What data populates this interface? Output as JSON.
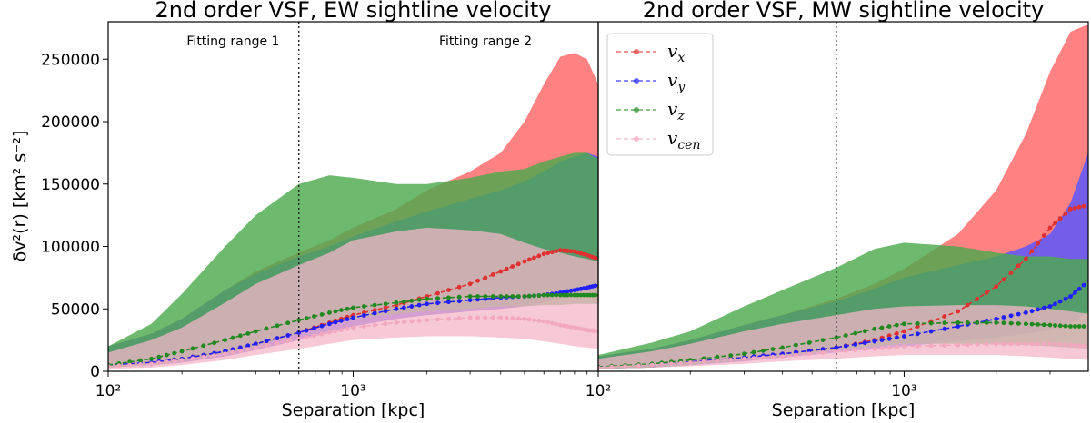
{
  "chart_data": [
    {
      "type": "area",
      "title": "2nd order VSF, EW sightline velocity",
      "xlabel": "Separation [kpc]",
      "ylabel": "δv²(r) [km² s⁻²]",
      "xscale": "log",
      "xlim": [
        100,
        10000
      ],
      "ylim": [
        0,
        280000
      ],
      "xticks": [
        {
          "value": 100,
          "label": "10²"
        },
        {
          "value": 1000,
          "label": "10³"
        }
      ],
      "yticks": [
        0,
        50000,
        100000,
        150000,
        200000,
        250000
      ],
      "vline": 600,
      "annotations": [
        "Fitting range 1",
        "Fitting range 2"
      ],
      "series": [
        {
          "name": "v_x",
          "color": "#ff6666",
          "x": [
            100,
            150,
            200,
            300,
            400,
            600,
            800,
            1000,
            1500,
            2000,
            3000,
            4000,
            5000,
            6000,
            7000,
            8000,
            9000,
            10000
          ],
          "upper": [
            20000,
            30000,
            42000,
            65000,
            80000,
            95000,
            105000,
            115000,
            130000,
            145000,
            160000,
            175000,
            200000,
            230000,
            252000,
            255000,
            250000,
            230000
          ],
          "lower": [
            3000,
            5000,
            7000,
            12000,
            17000,
            25000,
            32000,
            36000,
            42000,
            45000,
            48000,
            50000,
            52000,
            58000,
            62000,
            65000,
            60000,
            55000
          ],
          "mean": [
            5000,
            7000,
            10000,
            16000,
            22000,
            31000,
            39000,
            45000,
            53000,
            60000,
            70000,
            80000,
            88000,
            94000,
            97000,
            96000,
            93000,
            90000
          ]
        },
        {
          "name": "v_y",
          "color": "#5555ff",
          "x": [
            100,
            150,
            200,
            300,
            400,
            600,
            800,
            1000,
            1500,
            2000,
            3000,
            4000,
            5000,
            6000,
            7000,
            8000,
            9000,
            10000
          ],
          "upper": [
            20000,
            30000,
            42000,
            65000,
            78000,
            92000,
            100000,
            108000,
            120000,
            128000,
            138000,
            145000,
            152000,
            160000,
            168000,
            172000,
            175000,
            172000
          ],
          "lower": [
            3000,
            5000,
            7000,
            12000,
            17000,
            25000,
            32000,
            36000,
            42000,
            45000,
            48000,
            50000,
            52000,
            55000,
            58000,
            60000,
            62000,
            62000
          ],
          "mean": [
            5000,
            7000,
            10000,
            16000,
            22000,
            31000,
            38000,
            43000,
            50000,
            54000,
            57000,
            59000,
            60000,
            61000,
            63000,
            65000,
            67000,
            69000
          ]
        },
        {
          "name": "v_z",
          "color": "#4daa4d",
          "x": [
            100,
            150,
            200,
            300,
            400,
            600,
            800,
            1000,
            1500,
            2000,
            3000,
            4000,
            5000,
            6000,
            7000,
            8000,
            9000,
            10000
          ],
          "upper": [
            20000,
            38000,
            62000,
            100000,
            125000,
            150000,
            157000,
            155000,
            150000,
            150000,
            155000,
            160000,
            162000,
            168000,
            172000,
            175000,
            175000,
            170000
          ],
          "lower": [
            3000,
            5000,
            8000,
            14000,
            20000,
            30000,
            38000,
            42000,
            46000,
            48000,
            50000,
            52000,
            52000,
            53000,
            53000,
            54000,
            54000,
            54000
          ],
          "mean": [
            5000,
            10000,
            16000,
            25000,
            32000,
            41000,
            47000,
            51000,
            55000,
            58000,
            60000,
            60000,
            60000,
            61000,
            61000,
            61000,
            61000,
            61000
          ]
        },
        {
          "name": "v_cen",
          "color": "#f4b6c8",
          "x": [
            100,
            150,
            200,
            300,
            400,
            600,
            800,
            1000,
            1500,
            2000,
            3000,
            4000,
            5000,
            6000,
            7000,
            8000,
            9000,
            10000
          ],
          "upper": [
            15000,
            25000,
            35000,
            55000,
            70000,
            85000,
            95000,
            105000,
            112000,
            115000,
            113000,
            110000,
            103000,
            98000,
            95000,
            92000,
            90000,
            88000
          ],
          "lower": [
            2000,
            3000,
            5000,
            9000,
            13000,
            18000,
            22000,
            25000,
            27000,
            28000,
            28000,
            27000,
            26000,
            24000,
            22000,
            20000,
            19000,
            18000
          ],
          "mean": [
            4000,
            6000,
            9000,
            14000,
            19000,
            26000,
            31000,
            35000,
            39000,
            41000,
            43000,
            43000,
            42000,
            40000,
            37000,
            35000,
            33000,
            32000
          ]
        }
      ]
    },
    {
      "type": "area",
      "title": "2nd order VSF, MW sightline velocity",
      "xlabel": "Separation [kpc]",
      "ylabel": "",
      "xscale": "log",
      "xlim": [
        100,
        4000
      ],
      "ylim": [
        0,
        280000
      ],
      "xticks": [
        {
          "value": 100,
          "label": "10²"
        },
        {
          "value": 1000,
          "label": "10³"
        }
      ],
      "yticks": [],
      "vline": 600,
      "annotations": [],
      "series": [
        {
          "name": "v_x",
          "color": "#ff6666",
          "x": [
            100,
            150,
            200,
            300,
            400,
            600,
            800,
            1000,
            1500,
            2000,
            2500,
            3000,
            3500,
            4000
          ],
          "upper": [
            12000,
            18000,
            25000,
            37000,
            45000,
            58000,
            70000,
            82000,
            110000,
            145000,
            190000,
            240000,
            272000,
            278000
          ],
          "lower": [
            2000,
            3000,
            5000,
            8000,
            11000,
            16000,
            20000,
            24000,
            30000,
            36000,
            42000,
            47000,
            50000,
            50000
          ],
          "mean": [
            3500,
            5000,
            7500,
            11000,
            14000,
            19000,
            25000,
            32000,
            48000,
            68000,
            90000,
            115000,
            130000,
            133000
          ]
        },
        {
          "name": "v_y",
          "color": "#5555ff",
          "x": [
            100,
            150,
            200,
            300,
            400,
            600,
            800,
            1000,
            1500,
            2000,
            2500,
            3000,
            3500,
            4000
          ],
          "upper": [
            12000,
            18000,
            25000,
            37000,
            45000,
            56000,
            66000,
            75000,
            85000,
            92000,
            100000,
            110000,
            135000,
            175000
          ],
          "lower": [
            2000,
            3000,
            5000,
            8000,
            11000,
            15000,
            18000,
            20000,
            24000,
            27000,
            30000,
            33000,
            38000,
            48000
          ],
          "mean": [
            3500,
            5000,
            7500,
            11000,
            14000,
            19000,
            24000,
            28000,
            36000,
            42000,
            47000,
            52000,
            60000,
            72000
          ]
        },
        {
          "name": "v_z",
          "color": "#4daa4d",
          "x": [
            100,
            150,
            200,
            300,
            400,
            600,
            800,
            1000,
            1500,
            2000,
            2500,
            3000,
            3500,
            4000
          ],
          "upper": [
            13000,
            23000,
            32000,
            52000,
            65000,
            83000,
            98000,
            103000,
            100000,
            95000,
            92000,
            92000,
            90000,
            90000
          ],
          "lower": [
            2000,
            3000,
            5000,
            9000,
            12000,
            17000,
            20000,
            22000,
            22000,
            22000,
            21000,
            20000,
            19000,
            18000
          ],
          "mean": [
            3500,
            6000,
            9000,
            14000,
            19000,
            27000,
            34000,
            38000,
            39000,
            39000,
            38000,
            37000,
            36000,
            36000
          ]
        },
        {
          "name": "v_cen",
          "color": "#f4b6c8",
          "x": [
            100,
            150,
            200,
            300,
            400,
            600,
            800,
            1000,
            1500,
            2000,
            2500,
            3000,
            3500,
            4000
          ],
          "upper": [
            10000,
            16000,
            22000,
            32000,
            38000,
            45000,
            50000,
            52000,
            53000,
            53000,
            52000,
            50000,
            48000,
            46000
          ],
          "lower": [
            2000,
            3000,
            4000,
            6000,
            8000,
            10000,
            12000,
            13000,
            13000,
            13000,
            12000,
            11000,
            10000,
            9000
          ],
          "mean": [
            3000,
            5000,
            7000,
            10000,
            12000,
            16000,
            18000,
            20000,
            21000,
            22000,
            22000,
            22000,
            21000,
            20000
          ]
        }
      ]
    }
  ],
  "legend": {
    "items": [
      {
        "base": "v",
        "sub": "x",
        "color": "#ff6666",
        "marker": "#e03030"
      },
      {
        "base": "v",
        "sub": "y",
        "color": "#5555ff",
        "marker": "#2020ff"
      },
      {
        "base": "v",
        "sub": "z",
        "color": "#4daa4d",
        "marker": "#208a20"
      },
      {
        "base": "v",
        "sub": "cen",
        "color": "#f4b6c8",
        "marker": "#f2a8bf"
      }
    ]
  }
}
